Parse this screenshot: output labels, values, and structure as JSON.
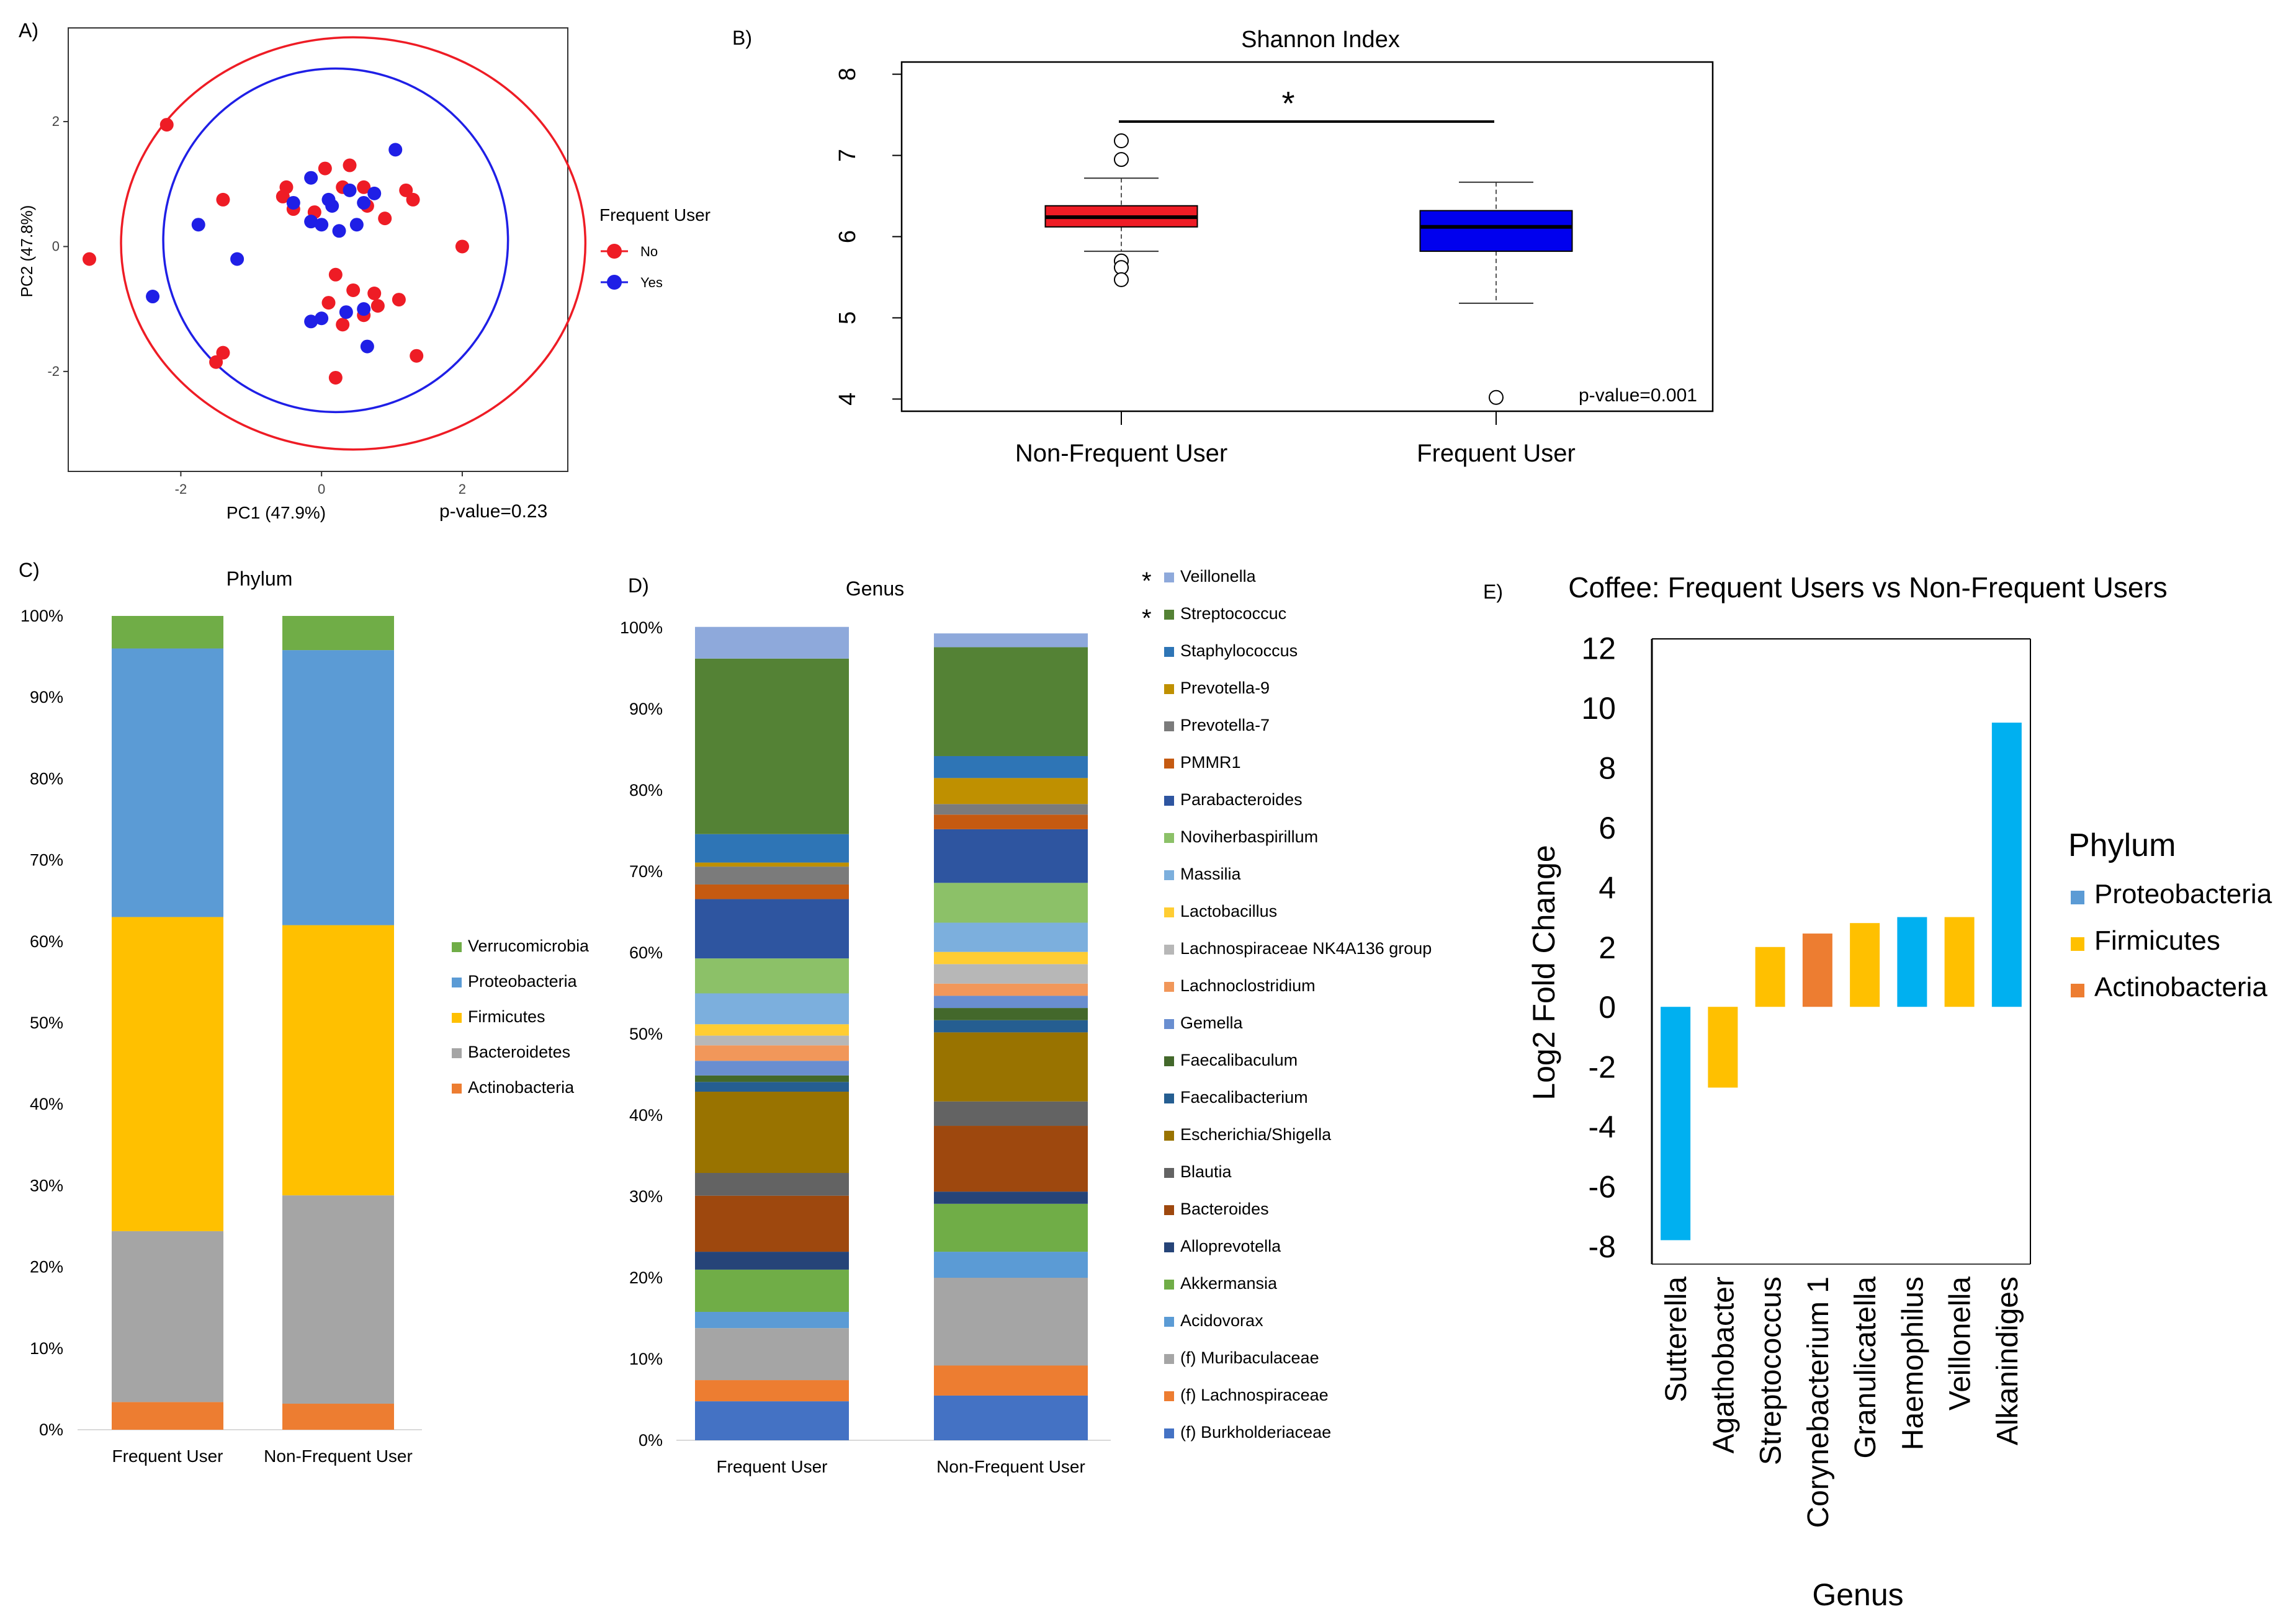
{
  "panels": {
    "a": "A)",
    "b": "B)",
    "c": "C)",
    "d": "D)",
    "e": "E)"
  },
  "chart_data": [
    {
      "panel": "A)",
      "type": "scatter",
      "xlabel": "PC1 (47.9%)",
      "ylabel": "PC2 (47.8%)",
      "xticks": [
        -2,
        0,
        2
      ],
      "yticks": [
        -2,
        0,
        2
      ],
      "xlim": [
        -3.6,
        3.5
      ],
      "ylim": [
        -3.6,
        3.5
      ],
      "annotation": "p-value=0.23",
      "legend_title": "Frequent User",
      "legend_position": "right",
      "grid": false,
      "colors": {
        "No": "#ee1c25",
        "Yes": "#1f1fe6"
      },
      "series": [
        {
          "name": "No",
          "points": [
            [
              -3.3,
              -0.2
            ],
            [
              -2.2,
              1.95
            ],
            [
              -1.4,
              0.75
            ],
            [
              -1.5,
              -1.85
            ],
            [
              -1.4,
              -1.7
            ],
            [
              -0.55,
              0.8
            ],
            [
              -0.5,
              0.95
            ],
            [
              -0.4,
              0.6
            ],
            [
              -0.1,
              0.55
            ],
            [
              0.05,
              1.25
            ],
            [
              0.3,
              0.95
            ],
            [
              0.4,
              1.3
            ],
            [
              0.6,
              0.95
            ],
            [
              0.65,
              0.65
            ],
            [
              0.9,
              0.45
            ],
            [
              1.2,
              0.9
            ],
            [
              1.3,
              0.75
            ],
            [
              2.0,
              0.0
            ],
            [
              0.2,
              -0.45
            ],
            [
              0.45,
              -0.7
            ],
            [
              0.75,
              -0.75
            ],
            [
              0.8,
              -0.95
            ],
            [
              0.1,
              -0.9
            ],
            [
              1.1,
              -0.85
            ],
            [
              0.3,
              -1.25
            ],
            [
              0.6,
              -1.1
            ],
            [
              0.2,
              -2.1
            ],
            [
              1.35,
              -1.75
            ]
          ]
        },
        {
          "name": "Yes",
          "points": [
            [
              -2.4,
              -0.8
            ],
            [
              -1.75,
              0.35
            ],
            [
              -1.2,
              -0.2
            ],
            [
              -0.4,
              0.7
            ],
            [
              -0.15,
              1.1
            ],
            [
              -0.15,
              0.4
            ],
            [
              0.0,
              0.35
            ],
            [
              0.15,
              0.65
            ],
            [
              0.25,
              0.25
            ],
            [
              0.1,
              0.75
            ],
            [
              0.5,
              0.35
            ],
            [
              0.6,
              0.7
            ],
            [
              0.75,
              0.85
            ],
            [
              0.4,
              0.9
            ],
            [
              1.05,
              1.55
            ],
            [
              -0.15,
              -1.2
            ],
            [
              0.0,
              -1.15
            ],
            [
              0.35,
              -1.05
            ],
            [
              0.6,
              -1.0
            ],
            [
              0.65,
              -1.6
            ]
          ]
        }
      ],
      "ellipses": [
        {
          "name": "No",
          "cx": 0.45,
          "cy": 0.05,
          "rx": 3.3,
          "ry": 3.3
        },
        {
          "name": "Yes",
          "cx": 0.2,
          "cy": 0.1,
          "rx": 2.45,
          "ry": 2.75
        }
      ]
    },
    {
      "panel": "B)",
      "type": "box",
      "title": "Shannon Index",
      "categories": [
        "Non-Frequent User",
        "Frequent User"
      ],
      "yticks": [
        4,
        5,
        6,
        7,
        8
      ],
      "ylim": [
        3.85,
        8.15
      ],
      "annotation": "p-value=0.001",
      "significance": "*",
      "boxes": [
        {
          "category": "Non-Frequent User",
          "color": "#ee1c25",
          "whisker_low": 5.82,
          "q1": 6.12,
          "median": 6.24,
          "q3": 6.38,
          "whisker_high": 6.72,
          "outliers": [
            7.18,
            6.95,
            5.7,
            5.62,
            5.47
          ]
        },
        {
          "category": "Frequent User",
          "color": "#0000ee",
          "whisker_low": 5.18,
          "q1": 5.82,
          "median": 6.12,
          "q3": 6.32,
          "whisker_high": 6.67,
          "outliers": [
            4.02
          ]
        }
      ]
    },
    {
      "panel": "C)",
      "type": "bar",
      "stacked": true,
      "title": "Phylum",
      "categories": [
        "Frequent User",
        "Non-Frequent User"
      ],
      "yticks": [
        "0%",
        "10%",
        "20%",
        "30%",
        "40%",
        "50%",
        "60%",
        "70%",
        "80%",
        "90%",
        "100%"
      ],
      "ylim": [
        0,
        100
      ],
      "legend_position": "right",
      "series": [
        {
          "name": "Actinobacteria",
          "color": "#ed7d31",
          "values": [
            3.4,
            3.2
          ]
        },
        {
          "name": "Bacteroidetes",
          "color": "#a5a5a5",
          "values": [
            21.0,
            25.6
          ]
        },
        {
          "name": "Firmicutes",
          "color": "#ffc000",
          "values": [
            38.6,
            33.2
          ]
        },
        {
          "name": "Proteobacteria",
          "color": "#5b9bd5",
          "values": [
            33.0,
            33.8
          ]
        },
        {
          "name": "Verrucomicrobia",
          "color": "#70ad47",
          "values": [
            4.0,
            4.2
          ]
        }
      ]
    },
    {
      "panel": "D)",
      "type": "bar",
      "stacked": true,
      "title": "Genus",
      "categories": [
        "Frequent User",
        "Non-Frequent User"
      ],
      "yticks": [
        "0%",
        "10%",
        "20%",
        "30%",
        "40%",
        "50%",
        "60%",
        "70%",
        "80%",
        "90%",
        "100%"
      ],
      "ylim": [
        0,
        100
      ],
      "legend_position": "right",
      "series": [
        {
          "name": "(f) Burkholderiaceae",
          "color": "#4472c4",
          "values": [
            4.8,
            5.5
          ]
        },
        {
          "name": "(f) Lachnospiraceae",
          "color": "#ed7d31",
          "values": [
            2.6,
            3.7
          ]
        },
        {
          "name": "(f) Muribaculaceae",
          "color": "#a5a5a5",
          "values": [
            6.4,
            10.8
          ]
        },
        {
          "name": "Acidovorax",
          "color": "#5b9bd5",
          "values": [
            2.0,
            3.2
          ]
        },
        {
          "name": "Akkermansia",
          "color": "#70ad47",
          "values": [
            5.2,
            5.9
          ]
        },
        {
          "name": "Alloprevotella",
          "color": "#264478",
          "values": [
            2.2,
            1.5
          ]
        },
        {
          "name": "Bacteroides",
          "color": "#9e480e",
          "values": [
            6.9,
            8.1
          ]
        },
        {
          "name": "Blautia",
          "color": "#636363",
          "values": [
            2.8,
            3.0
          ]
        },
        {
          "name": "Escherichia/Shigella",
          "color": "#997300",
          "values": [
            10.0,
            8.5
          ]
        },
        {
          "name": "Faecalibacterium",
          "color": "#255e91",
          "values": [
            1.2,
            1.5
          ]
        },
        {
          "name": "Faecalibaculum",
          "color": "#43682b",
          "values": [
            0.8,
            1.5
          ]
        },
        {
          "name": "Gemella",
          "color": "#698ed0",
          "values": [
            1.8,
            1.5
          ]
        },
        {
          "name": "Lachnoclostridium",
          "color": "#f1975a",
          "values": [
            1.9,
            1.5
          ]
        },
        {
          "name": "Lachnospiraceae NK4A136 group",
          "color": "#b7b7b7",
          "values": [
            1.2,
            2.4
          ]
        },
        {
          "name": "Lactobacillus",
          "color": "#ffcd33",
          "values": [
            1.4,
            1.5
          ]
        },
        {
          "name": "Massilia",
          "color": "#7cafdd",
          "values": [
            3.8,
            3.6
          ]
        },
        {
          "name": "Noviherbaspirillum",
          "color": "#8cc168",
          "values": [
            4.3,
            4.9
          ]
        },
        {
          "name": "Parabacteroides",
          "color": "#2e55a0",
          "values": [
            7.3,
            6.6
          ]
        },
        {
          "name": "PMMR1",
          "color": "#c55a11",
          "values": [
            1.8,
            1.8
          ]
        },
        {
          "name": "Prevotella-7",
          "color": "#7b7b7b",
          "values": [
            2.2,
            1.3
          ]
        },
        {
          "name": "Prevotella-9",
          "color": "#bf9000",
          "values": [
            0.5,
            3.2
          ]
        },
        {
          "name": "Staphylococcus",
          "color": "#2e75b6",
          "values": [
            3.5,
            2.7
          ]
        },
        {
          "name": "Streptococcuc",
          "color": "#548235",
          "values": [
            21.6,
            13.4
          ]
        },
        {
          "name": "Veillonella",
          "color": "#8ea9db",
          "values": [
            3.9,
            1.7
          ]
        }
      ],
      "legend_markers": {
        "Veillonella": "*",
        "Streptococcuc": "*"
      }
    },
    {
      "panel": "E)",
      "type": "bar",
      "title": "Coffee: Frequent Users vs Non-Frequent Users",
      "xlabel": "Genus",
      "ylabel": "Log2 Fold Change",
      "yticks": [
        -8,
        -6,
        -4,
        -2,
        0,
        2,
        4,
        6,
        8,
        10,
        12
      ],
      "ylim": [
        -8.6,
        12.3
      ],
      "legend_title": "Phylum",
      "legend_position": "right",
      "phylum_colors": {
        "Proteobacteria": "#00b0f0",
        "Firmicutes": "#ffc000",
        "Actinobacteria": "#ed7d31"
      },
      "legend_swatch_colors": {
        "Proteobacteria": "#5b9bd5",
        "Firmicutes": "#ffc000",
        "Actinobacteria": "#ed7d31"
      },
      "categories": [
        "Sutterella",
        "Agathobacter",
        "Streptococcus",
        "Corynebacterium 1",
        "Granulicatella",
        "Haemophilus",
        "Veillonella",
        "Alkanindiges"
      ],
      "values": [
        -7.8,
        -2.7,
        2.0,
        2.45,
        2.8,
        3.0,
        3.0,
        9.5
      ],
      "phylum": [
        "Proteobacteria",
        "Firmicutes",
        "Firmicutes",
        "Actinobacteria",
        "Firmicutes",
        "Proteobacteria",
        "Firmicutes",
        "Proteobacteria"
      ]
    }
  ]
}
